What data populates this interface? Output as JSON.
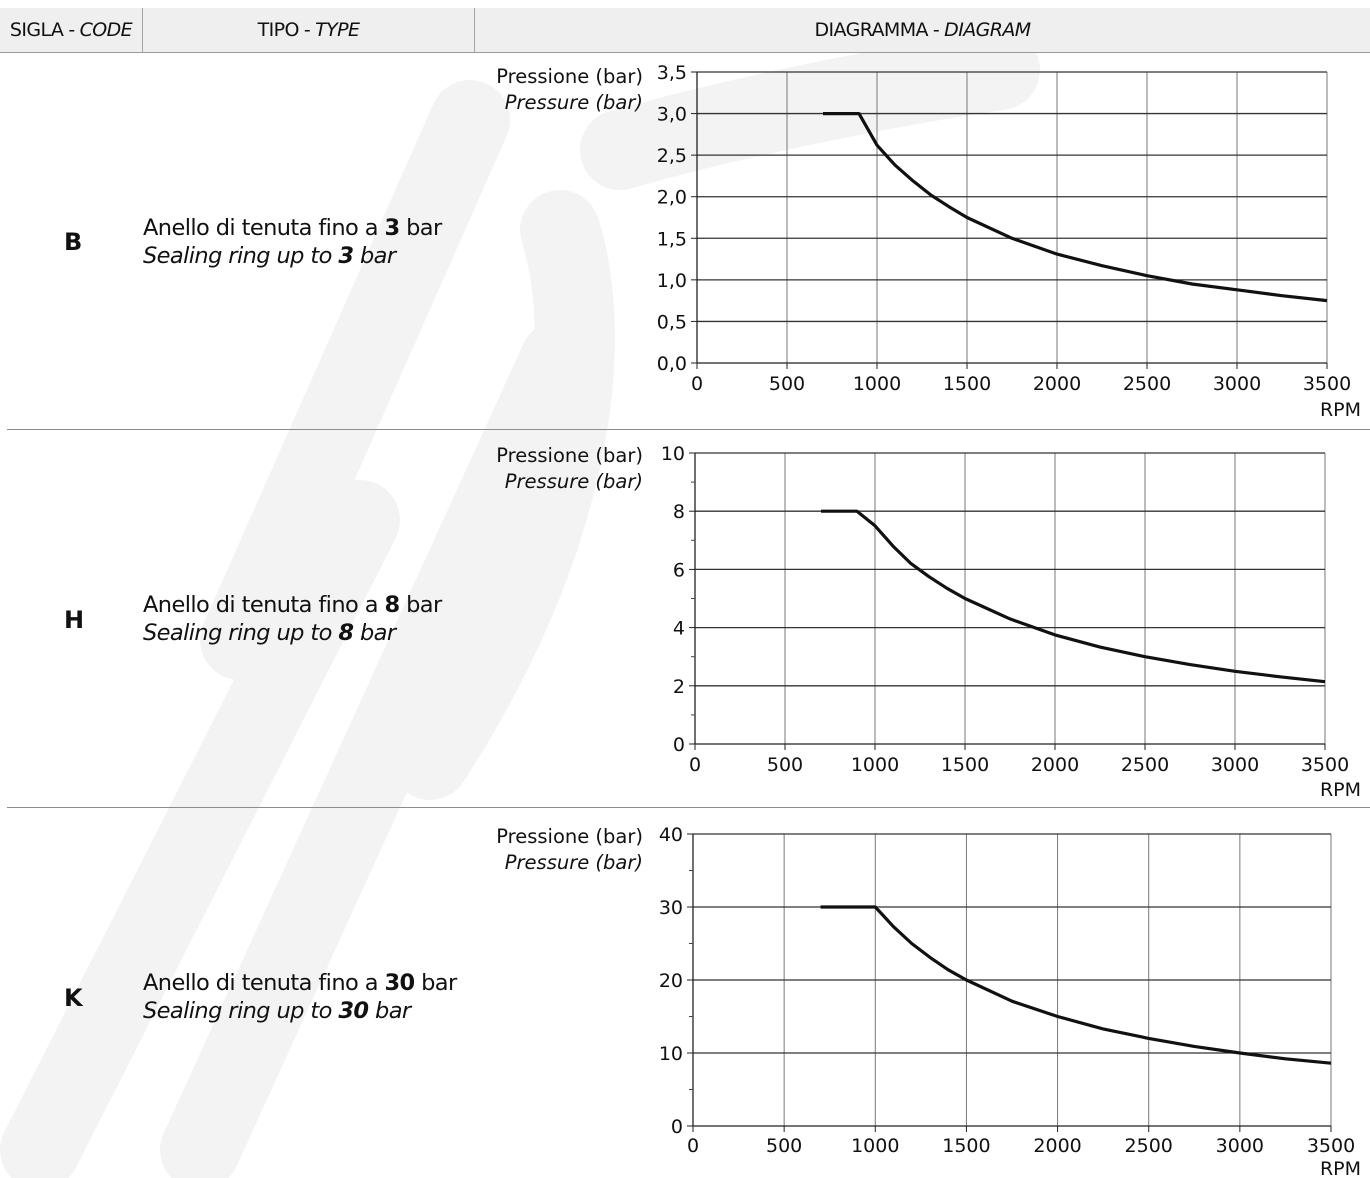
{
  "header": {
    "code_it": "SIGLA",
    "code_en": "CODE",
    "type_it": "TIPO",
    "type_en": "TYPE",
    "diagram_it": "DIAGRAMMA",
    "diagram_en": "DIAGRAM",
    "separator": "-"
  },
  "rows": [
    {
      "code": "B",
      "type_it_pre": "Anello di tenuta fino a ",
      "type_value": "3",
      "type_unit": " bar",
      "type_en_pre": "Sealing ring up to ",
      "ylabel_it": "Pressione (bar)",
      "ylabel_en": "Pressure (bar)",
      "xlabel": "RPM"
    },
    {
      "code": "H",
      "type_it_pre": "Anello di tenuta fino a ",
      "type_value": "8",
      "type_unit": " bar",
      "type_en_pre": "Sealing ring up to ",
      "ylabel_it": "Pressione (bar)",
      "ylabel_en": "Pressure (bar)",
      "xlabel": "RPM"
    },
    {
      "code": "K",
      "type_it_pre": "Anello di tenuta fino a ",
      "type_value": "30",
      "type_unit": " bar",
      "type_en_pre": "Sealing ring up to ",
      "ylabel_it": "Pressione (bar)",
      "ylabel_en": "Pressure (bar)",
      "xlabel": "RPM"
    }
  ],
  "chart_data": [
    {
      "type": "line",
      "xlabel": "RPM",
      "ylabel": "Pressione (bar) / Pressure (bar)",
      "xlim": [
        0,
        3500
      ],
      "ylim": [
        0,
        3.5
      ],
      "xticks": [
        0,
        500,
        1000,
        1500,
        2000,
        2500,
        3000,
        3500
      ],
      "xtick_labels": [
        "0",
        "500",
        "1000",
        "1500",
        "2000",
        "2500",
        "3000",
        "3500"
      ],
      "yticks": [
        0,
        0.5,
        1,
        1.5,
        2,
        2.5,
        3,
        3.5
      ],
      "ytick_labels": [
        "0,0",
        "0,5",
        "1,0",
        "1,5",
        "2,0",
        "2,5",
        "3,0",
        "3,5"
      ],
      "grid": true,
      "series": [
        {
          "x": [
            700,
            900,
            1000,
            1100,
            1200,
            1300,
            1400,
            1500,
            1750,
            2000,
            2250,
            2500,
            2750,
            3000,
            3250,
            3500
          ],
          "y": [
            3.0,
            3.0,
            2.62,
            2.38,
            2.19,
            2.02,
            1.88,
            1.75,
            1.5,
            1.31,
            1.17,
            1.05,
            0.95,
            0.88,
            0.81,
            0.75
          ]
        }
      ]
    },
    {
      "type": "line",
      "xlabel": "RPM",
      "ylabel": "Pressione (bar) / Pressure (bar)",
      "xlim": [
        0,
        3500
      ],
      "ylim": [
        0,
        10
      ],
      "xticks": [
        0,
        500,
        1000,
        1500,
        2000,
        2500,
        3000,
        3500
      ],
      "xtick_labels": [
        "0",
        "500",
        "1000",
        "1500",
        "2000",
        "2500",
        "3000",
        "3500"
      ],
      "yticks": [
        0,
        2,
        4,
        6,
        8,
        10
      ],
      "ytick_labels": [
        "0",
        "2",
        "4",
        "6",
        "8",
        "10"
      ],
      "minor_yticks": [
        1,
        3,
        5,
        7,
        9
      ],
      "grid": true,
      "series": [
        {
          "x": [
            700,
            900,
            1000,
            1100,
            1200,
            1300,
            1400,
            1500,
            1750,
            2000,
            2250,
            2500,
            2750,
            3000,
            3250,
            3500
          ],
          "y": [
            8.0,
            8.0,
            7.5,
            6.8,
            6.2,
            5.75,
            5.35,
            5.0,
            4.3,
            3.75,
            3.33,
            3.0,
            2.73,
            2.5,
            2.31,
            2.14
          ]
        }
      ]
    },
    {
      "type": "line",
      "xlabel": "RPM",
      "ylabel": "Pressione (bar) / Pressure (bar)",
      "xlim": [
        0,
        3500
      ],
      "ylim": [
        0,
        40
      ],
      "xticks": [
        0,
        500,
        1000,
        1500,
        2000,
        2500,
        3000,
        3500
      ],
      "xtick_labels": [
        "0",
        "500",
        "1000",
        "1500",
        "2000",
        "2500",
        "3000",
        "3500"
      ],
      "yticks": [
        0,
        10,
        20,
        30,
        40
      ],
      "ytick_labels": [
        "0",
        "10",
        "20",
        "30",
        "40"
      ],
      "minor_yticks": [
        5,
        15,
        25,
        35
      ],
      "grid": true,
      "series": [
        {
          "x": [
            700,
            1000,
            1100,
            1200,
            1300,
            1400,
            1500,
            1750,
            2000,
            2250,
            2500,
            2750,
            3000,
            3250,
            3500
          ],
          "y": [
            30,
            30,
            27.3,
            25,
            23.1,
            21.4,
            20,
            17.1,
            15,
            13.3,
            12,
            10.9,
            10,
            9.2,
            8.6
          ]
        }
      ]
    }
  ]
}
